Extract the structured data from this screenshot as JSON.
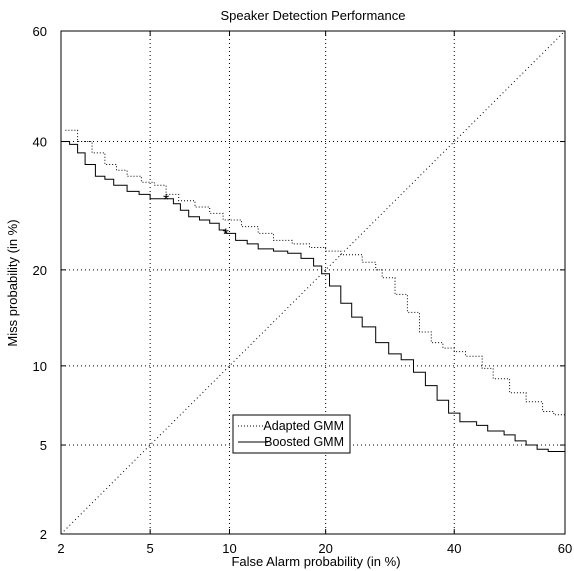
{
  "chart_data": {
    "type": "line",
    "title": "Speaker Detection Performance",
    "xlabel": "False Alarm probability (in %)",
    "ylabel": "Miss probability (in %)",
    "x_scale": "probit",
    "y_scale": "probit",
    "xlim": [
      2,
      60
    ],
    "ylim": [
      2,
      60
    ],
    "xticks": [
      2,
      5,
      10,
      20,
      40,
      60
    ],
    "yticks": [
      2,
      5,
      10,
      20,
      40,
      60
    ],
    "grid": true,
    "legend_position": "lower-center",
    "series": [
      {
        "name": "Adapted GMM",
        "style": "dotted",
        "color": "#000000",
        "points": [
          [
            2.1,
            42
          ],
          [
            2.4,
            40
          ],
          [
            2.8,
            38
          ],
          [
            3.2,
            36
          ],
          [
            3.6,
            35
          ],
          [
            4.0,
            34
          ],
          [
            4.6,
            33
          ],
          [
            5.2,
            32.5
          ],
          [
            5.8,
            31
          ],
          [
            6.5,
            30
          ],
          [
            7.5,
            29
          ],
          [
            8.5,
            28
          ],
          [
            9.5,
            27
          ],
          [
            11,
            26
          ],
          [
            12.5,
            25
          ],
          [
            14,
            24
          ],
          [
            16,
            23.5
          ],
          [
            18,
            23
          ],
          [
            20,
            22.5
          ],
          [
            22,
            22
          ],
          [
            25,
            21
          ],
          [
            27,
            20
          ],
          [
            28,
            19
          ],
          [
            30,
            17
          ],
          [
            32,
            15
          ],
          [
            34,
            13
          ],
          [
            36,
            12
          ],
          [
            38,
            11.5
          ],
          [
            40,
            11.2
          ],
          [
            42,
            10.8
          ],
          [
            44,
            10.8
          ],
          [
            45,
            9.8
          ],
          [
            47,
            9.0
          ],
          [
            50,
            8.0
          ],
          [
            53,
            7.4
          ],
          [
            56,
            6.8
          ],
          [
            58,
            6.6
          ],
          [
            60,
            6.3
          ]
        ]
      },
      {
        "name": "Boosted GMM",
        "style": "solid",
        "color": "#000000",
        "points": [
          [
            2,
            40
          ],
          [
            2.2,
            39.5
          ],
          [
            2.4,
            38
          ],
          [
            2.6,
            36
          ],
          [
            2.9,
            34
          ],
          [
            3.2,
            33.5
          ],
          [
            3.5,
            32.5
          ],
          [
            4.0,
            31.5
          ],
          [
            4.5,
            31
          ],
          [
            5.0,
            30.3
          ],
          [
            5.5,
            30.3
          ],
          [
            5.8,
            30.3
          ],
          [
            6.2,
            29.5
          ],
          [
            6.6,
            28.5
          ],
          [
            7.1,
            27.5
          ],
          [
            7.8,
            27
          ],
          [
            8.5,
            26.5
          ],
          [
            9.2,
            25.5
          ],
          [
            9.7,
            25
          ],
          [
            10.5,
            24
          ],
          [
            11.5,
            23.5
          ],
          [
            12.5,
            22.8
          ],
          [
            14,
            22.5
          ],
          [
            15.5,
            22.2
          ],
          [
            17,
            21.5
          ],
          [
            18.5,
            20.5
          ],
          [
            19.5,
            19.5
          ],
          [
            20.5,
            18
          ],
          [
            22,
            16
          ],
          [
            23.5,
            14.5
          ],
          [
            25,
            13.5
          ],
          [
            27,
            12
          ],
          [
            29,
            11
          ],
          [
            31,
            10.5
          ],
          [
            33,
            9.5
          ],
          [
            35,
            8.5
          ],
          [
            37,
            7.5
          ],
          [
            39,
            6.7
          ],
          [
            41,
            6.2
          ],
          [
            44,
            6.0
          ],
          [
            46,
            5.7
          ],
          [
            49,
            5.5
          ],
          [
            51,
            5.2
          ],
          [
            53,
            5.0
          ],
          [
            55,
            4.8
          ],
          [
            57,
            4.7
          ],
          [
            60,
            4.6
          ]
        ]
      }
    ],
    "markers": [
      {
        "series": "Boosted GMM",
        "symbol": "*",
        "x": 5.8,
        "y": 30.3
      },
      {
        "series": "Boosted GMM",
        "symbol": "*",
        "x": 9.7,
        "y": 25
      }
    ]
  }
}
